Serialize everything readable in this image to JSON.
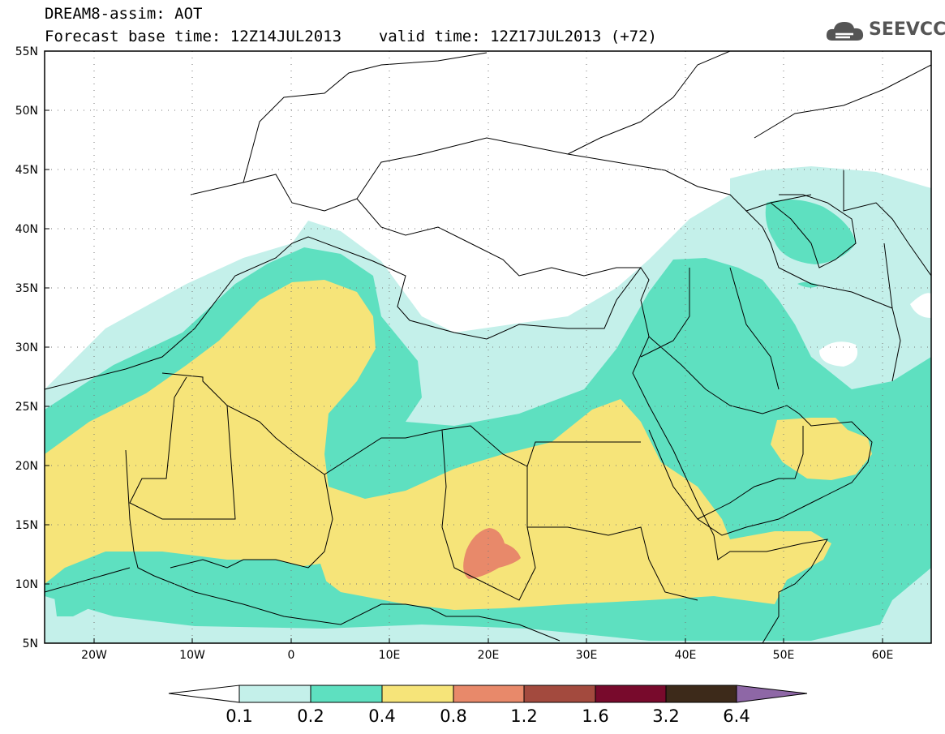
{
  "header": {
    "model_label": "DREAM8-assim: AOT",
    "base_time_label": "Forecast base time: 12Z14JUL2013",
    "valid_time_label": "valid time: 12Z17JUL2013 (+72)",
    "logo_text": "SEEVCCC"
  },
  "map": {
    "lat_labels": [
      "55N",
      "50N",
      "45N",
      "40N",
      "35N",
      "30N",
      "25N",
      "20N",
      "15N",
      "10N",
      "5N"
    ],
    "lon_labels": [
      "20W",
      "10W",
      "0",
      "10E",
      "20E",
      "30E",
      "40E",
      "50E",
      "60E"
    ],
    "lat_range": [
      5,
      55
    ],
    "lon_range": [
      -25,
      65
    ],
    "grid": "dotted"
  },
  "legend": {
    "ticks": [
      "0.1",
      "0.2",
      "0.4",
      "0.8",
      "1.2",
      "1.6",
      "3.2",
      "6.4"
    ],
    "colors": {
      "below_0_1": "#ffffff",
      "c_0_1_0_2": "#c4f0ea",
      "c_0_2_0_4": "#5ee0c0",
      "c_0_4_0_8": "#f6e479",
      "c_0_8_1_2": "#e8896a",
      "c_1_2_1_6": "#a34a3e",
      "c_1_6_3_2": "#780a2c",
      "c_3_2_6_4": "#3d2a1a",
      "above_6_4": "#8e67a6"
    }
  }
}
